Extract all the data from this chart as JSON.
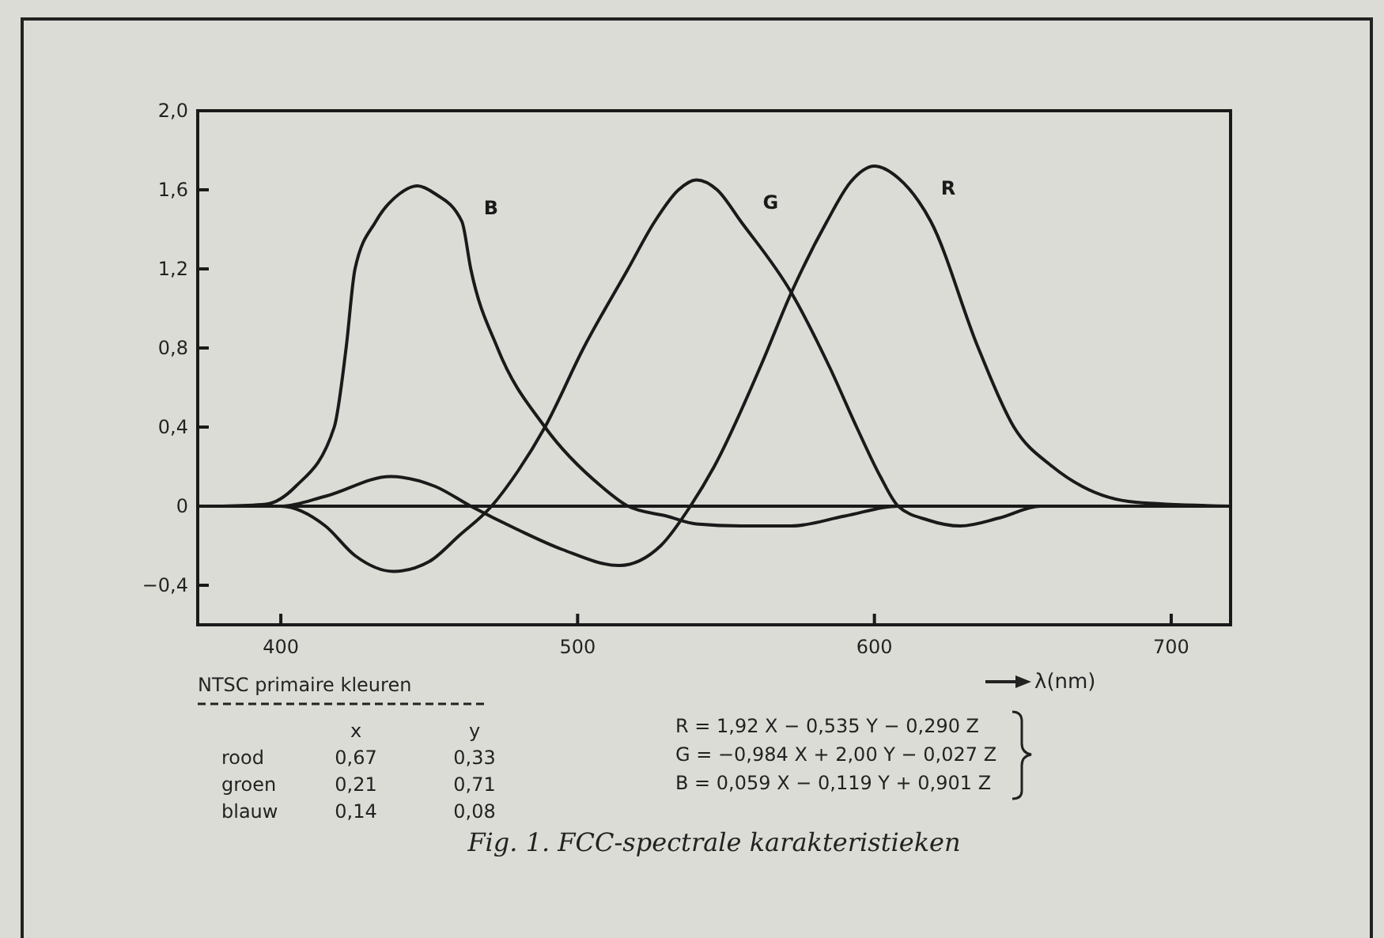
{
  "chart_data": {
    "type": "line",
    "title": "Fig. 1. FCC-spectrale karakteristieken",
    "xlabel": "λ(nm)",
    "xlim": [
      372,
      720
    ],
    "xticks": [
      400,
      500,
      600,
      700
    ],
    "ylim": [
      -0.6,
      2.0
    ],
    "yticks": [
      {
        "value": -0.4,
        "label": "−0,4"
      },
      {
        "value": 0,
        "label": "0"
      },
      {
        "value": 0.4,
        "label": "0,4"
      },
      {
        "value": 0.8,
        "label": "0,8"
      },
      {
        "value": 1.2,
        "label": "1,2"
      },
      {
        "value": 1.6,
        "label": "1,6"
      },
      {
        "value": 2.0,
        "label": "2,0"
      }
    ],
    "grid": false,
    "marker": "none",
    "line_style": "solid",
    "ref_lines": [
      {
        "axis": "y",
        "value": 0,
        "color": "#1a1a1a"
      }
    ],
    "series": [
      {
        "name": "B",
        "color": "#1a1a1a",
        "x": [
          380,
          395,
          405,
          418,
          422,
          425,
          432,
          440,
          446,
          452,
          461,
          464,
          473,
          489,
          508,
          517,
          530,
          540,
          555,
          572,
          590,
          608,
          640,
          680,
          700
        ],
        "values": [
          0,
          0.01,
          0.1,
          0.4,
          0.8,
          1.2,
          1.44,
          1.58,
          1.62,
          1.58,
          1.44,
          1.2,
          0.8,
          0.4,
          0.1,
          0,
          -0.05,
          -0.09,
          -0.1,
          -0.1,
          -0.05,
          0,
          0,
          0,
          0
        ]
      },
      {
        "name": "G",
        "color": "#1a1a1a",
        "x": [
          390,
          400,
          415,
          425,
          438,
          450,
          460,
          471,
          480,
          489,
          502,
          517,
          526,
          534,
          540,
          547,
          555,
          572,
          585,
          594,
          602,
          608,
          618,
          629,
          642,
          656,
          675
        ],
        "values": [
          0,
          0,
          -0.1,
          -0.25,
          -0.33,
          -0.28,
          -0.15,
          0,
          0.18,
          0.4,
          0.8,
          1.2,
          1.44,
          1.6,
          1.65,
          1.6,
          1.44,
          1.08,
          0.7,
          0.4,
          0.15,
          0,
          -0.07,
          -0.1,
          -0.06,
          0,
          0
        ]
      },
      {
        "name": "R",
        "color": "#1a1a1a",
        "x": [
          395,
          400,
          415,
          437,
          452,
          464,
          480,
          495,
          514,
          528,
          538,
          546,
          562,
          572,
          584,
          592,
          600,
          608,
          619,
          635,
          647,
          660,
          670,
          688,
          720
        ],
        "values": [
          0,
          0,
          0.05,
          0.15,
          0.1,
          0,
          -0.12,
          -0.22,
          -0.3,
          -0.2,
          0,
          0.2,
          0.72,
          1.08,
          1.44,
          1.64,
          1.72,
          1.66,
          1.44,
          0.8,
          0.4,
          0.2,
          0.1,
          0.02,
          0
        ]
      }
    ],
    "annotations": [
      "NTSC primaire kleuren",
      "x",
      "y",
      "rood",
      "0,67",
      "0,33",
      "groen",
      "0,21",
      "0,71",
      "blauw",
      "0,14",
      "0,08",
      "R = 1,92 X − 0,535 Y − 0,290 Z",
      "G = −0,984 X + 2,00 Y − 0,027 Z",
      "B = 0,059 X − 0,119 Y + 0,901 Z"
    ]
  }
}
